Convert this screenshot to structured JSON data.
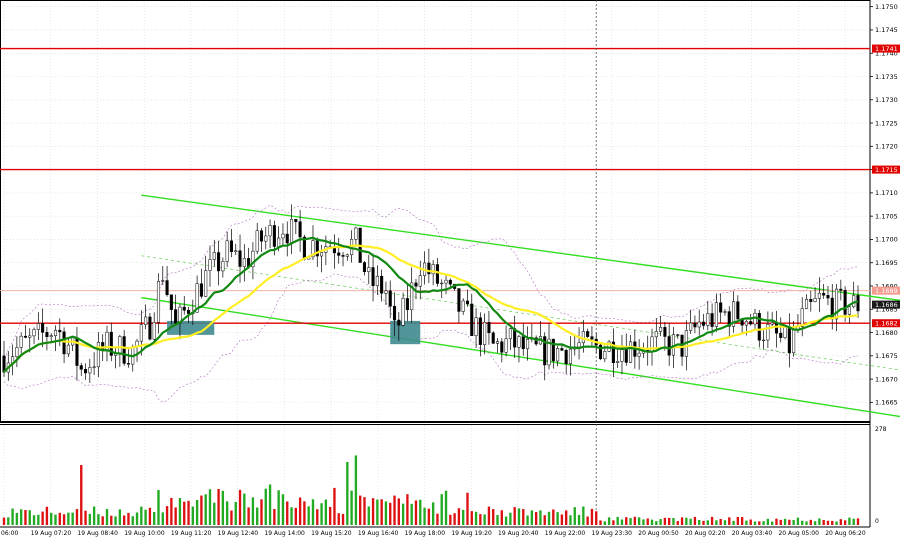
{
  "colors": {
    "background": "#ffffff",
    "frame": "#000000",
    "grid": "#d8d8d8",
    "candle": "#000000",
    "resistance_line": "#e00000",
    "level_line": "#f0b0a8",
    "channel": "#33dd22",
    "channel_mid": "#66cc55",
    "ma_fast": "#ffee22",
    "ma_slow": "#118811",
    "bollinger": "#b070c0",
    "volume_up": "#22aa22",
    "volume_down": "#dd1111",
    "entry_box": "#3f8a8f",
    "price_tag_red": "#e00000",
    "price_tag_pink": "#f29b8f",
    "price_tag_current": "#1a1a1a"
  },
  "chart_data": {
    "type": "candlestick",
    "price_axis": {
      "range": [
        1.1661,
        1.1751
      ],
      "ticks": [
        "1.1665",
        "1.1670",
        "1.1675",
        "1.1680",
        "1.1685",
        "1.1690",
        "1.1695",
        "1.1700",
        "1.1705",
        "1.1710",
        "1.1715",
        "1.1720",
        "1.1725",
        "1.1730",
        "1.1735",
        "1.1740",
        "1.1745",
        "1.1750"
      ]
    },
    "time_axis": {
      "ticks": [
        "06:00",
        "19 Aug 07:20",
        "19 Aug 08:40",
        "19 Aug 10:00",
        "19 Aug 11:20",
        "19 Aug 12:40",
        "19 Aug 14:00",
        "19 Aug 15:20",
        "19 Aug 16:40",
        "19 Aug 18:00",
        "19 Aug 19:20",
        "19 Aug 20:40",
        "19 Aug 22:00",
        "19 Aug 23:30",
        "20 Aug 00:50",
        "20 Aug 02:20",
        "20 Aug 03:40",
        "20 Aug 05:00",
        "20 Aug 06:20"
      ],
      "bar_count": 200
    },
    "horizontal_levels": [
      {
        "price": 1.1741,
        "label": "1.1741",
        "style": "resistance"
      },
      {
        "price": 1.1715,
        "label": "1.1715",
        "style": "resistance"
      },
      {
        "price": 1.1689,
        "label": "1.1689",
        "style": "level"
      },
      {
        "price": 1.1682,
        "label": "1.1682",
        "style": "resistance"
      }
    ],
    "current_price": {
      "price": 1.1686,
      "label": "1.1686"
    },
    "channel": {
      "upper": [
        [
          32,
          1.17095
        ],
        [
          212,
          1.16865
        ]
      ],
      "lower": [
        [
          32,
          1.16875
        ],
        [
          212,
          1.16615
        ]
      ],
      "middle": [
        [
          32,
          1.16965
        ],
        [
          212,
          1.16715
        ]
      ]
    },
    "entry_boxes": [
      {
        "from_bar": 38,
        "to_bar": 49,
        "high": 1.16825,
        "low": 1.16795
      },
      {
        "from_bar": 90,
        "to_bar": 97,
        "high": 1.16825,
        "low": 1.16775
      }
    ],
    "vertical_marker_bar": 138,
    "anchors": [
      [
        0,
        1.1675
      ],
      [
        6,
        1.1678
      ],
      [
        12,
        1.1681
      ],
      [
        16,
        1.1676
      ],
      [
        18,
        1.1672
      ],
      [
        24,
        1.1677
      ],
      [
        30,
        1.1676
      ],
      [
        34,
        1.1682
      ],
      [
        37,
        1.1693
      ],
      [
        40,
        1.1681
      ],
      [
        43,
        1.1686
      ],
      [
        47,
        1.1692
      ],
      [
        52,
        1.1697
      ],
      [
        56,
        1.1695
      ],
      [
        60,
        1.17
      ],
      [
        65,
        1.1703
      ],
      [
        70,
        1.1699
      ],
      [
        76,
        1.1699
      ],
      [
        82,
        1.1699
      ],
      [
        85,
        1.1691
      ],
      [
        89,
        1.1689
      ],
      [
        91,
        1.168
      ],
      [
        94,
        1.1686
      ],
      [
        97,
        1.1695
      ],
      [
        103,
        1.1689
      ],
      [
        107,
        1.1684
      ],
      [
        110,
        1.1681
      ],
      [
        114,
        1.1677
      ],
      [
        118,
        1.1678
      ],
      [
        122,
        1.1676
      ],
      [
        128,
        1.1676
      ],
      [
        134,
        1.1677
      ],
      [
        140,
        1.1677
      ],
      [
        146,
        1.1677
      ],
      [
        152,
        1.1678
      ],
      [
        158,
        1.1677
      ],
      [
        162,
        1.1682
      ],
      [
        168,
        1.1684
      ],
      [
        172,
        1.1684
      ],
      [
        176,
        1.1681
      ],
      [
        180,
        1.1679
      ],
      [
        183,
        1.1677
      ],
      [
        186,
        1.1683
      ],
      [
        190,
        1.1687
      ],
      [
        194,
        1.1686
      ],
      [
        197,
        1.1686
      ]
    ],
    "volume_axis": {
      "max_label": "278",
      "min_label": "0"
    }
  }
}
